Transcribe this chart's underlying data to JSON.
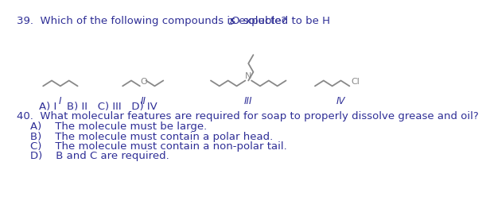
{
  "title_q39_part1": "39.  Which of the following compounds is expected to be H",
  "title_q39_sub": "2",
  "title_q39_part2": "O soluble?",
  "answer_q39": "A) I   B) II   C) III   D) IV",
  "q40_text": "40.  What molecular features are required for soap to properly dissolve grease and oil?",
  "q40_a": "A)    The molecule must be large.",
  "q40_b": "B)    The molecule must contain a polar head.",
  "q40_c": "C)    The molecule must contain a non-polar tail.",
  "q40_d": "D)    B and C are required.",
  "label_I": "I",
  "label_II": "II",
  "label_III": "III",
  "label_IV": "IV",
  "text_color": "#2e2e96",
  "struct_color": "#888888",
  "bg_color": "#ffffff",
  "fs_main": 9.5,
  "fs_small": 7.5,
  "fs_label": 8.5,
  "struct_lw": 1.3
}
